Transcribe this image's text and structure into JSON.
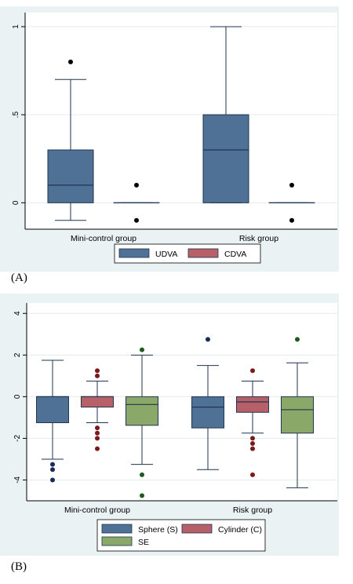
{
  "chart_data": [
    {
      "type": "box",
      "panel_label": "(A)",
      "categories": [
        "Mini-control group",
        "Risk group"
      ],
      "yticks": [
        {
          "value": 0,
          "label": "0"
        },
        {
          "value": 0.5,
          "label": ".5"
        },
        {
          "value": 1,
          "label": "1"
        }
      ],
      "ylim": [
        -0.15,
        1.08
      ],
      "grid": true,
      "legend_position": "bottom",
      "series": [
        {
          "name": "UDVA",
          "color": "#4f7196",
          "boxes": [
            {
              "min": -0.1,
              "q1": 0.0,
              "median": 0.1,
              "q3": 0.3,
              "max": 0.7,
              "outliers": [
                0.8
              ]
            },
            {
              "min": 0.0,
              "q1": 0.0,
              "median": 0.3,
              "q3": 0.5,
              "max": 1.0,
              "outliers": []
            }
          ]
        },
        {
          "name": "CDVA",
          "color": "#b86068",
          "boxes": [
            {
              "min": 0.0,
              "q1": 0.0,
              "median": 0.0,
              "q3": 0.0,
              "max": 0.0,
              "outliers": [
                0.1,
                -0.1
              ]
            },
            {
              "min": 0.0,
              "q1": 0.0,
              "median": 0.0,
              "q3": 0.0,
              "max": 0.0,
              "outliers": [
                0.1,
                -0.1
              ]
            }
          ]
        }
      ],
      "colors": {
        "background": "#eaf2f3",
        "plot": "#ffffff",
        "outlier": "#000000"
      }
    },
    {
      "type": "box",
      "panel_label": "(B)",
      "categories": [
        "Mini-control group",
        "Risk group"
      ],
      "yticks": [
        {
          "value": -4,
          "label": "-4"
        },
        {
          "value": -2,
          "label": "-2"
        },
        {
          "value": 0,
          "label": "0"
        },
        {
          "value": 2,
          "label": "2"
        },
        {
          "value": 4,
          "label": "4"
        }
      ],
      "ylim": [
        -5.0,
        4.5
      ],
      "grid": true,
      "legend_position": "bottom",
      "series": [
        {
          "name": "Sphere (S)",
          "color": "#4f7196",
          "outlier_color": "#1a2a5a",
          "boxes": [
            {
              "min": -3.0,
              "q1": -1.25,
              "median": 0.0,
              "q3": 0.0,
              "max": 1.75,
              "outliers": [
                -3.25,
                -3.5,
                -4.0
              ]
            },
            {
              "min": -3.5,
              "q1": -1.5,
              "median": -0.5,
              "q3": 0.0,
              "max": 1.5,
              "outliers": [
                2.75
              ]
            }
          ]
        },
        {
          "name": "Cylinder (C)",
          "color": "#b86068",
          "outlier_color": "#7a1a1a",
          "boxes": [
            {
              "min": -1.25,
              "q1": -0.5,
              "median": 0.0,
              "q3": 0.0,
              "max": 0.75,
              "outliers": [
                1.25,
                1.0,
                -1.5,
                -1.75,
                -2.0,
                -2.5
              ]
            },
            {
              "min": -1.75,
              "q1": -0.75,
              "median": -0.25,
              "q3": 0.0,
              "max": 0.75,
              "outliers": [
                1.25,
                -2.0,
                -2.25,
                -2.5,
                -3.75
              ]
            }
          ]
        },
        {
          "name": "SE",
          "color": "#8aa868",
          "outlier_color": "#1e5a1e",
          "boxes": [
            {
              "min": -3.25,
              "q1": -1.375,
              "median": -0.375,
              "q3": 0.0,
              "max": 2.0,
              "outliers": [
                2.25,
                -3.75,
                -4.75
              ]
            },
            {
              "min": -4.375,
              "q1": -1.75,
              "median": -0.625,
              "q3": 0.0,
              "max": 1.625,
              "outliers": [
                2.75
              ]
            }
          ]
        }
      ],
      "colors": {
        "background": "#eaf2f3",
        "plot": "#ffffff",
        "outlier": "#000000"
      }
    }
  ]
}
